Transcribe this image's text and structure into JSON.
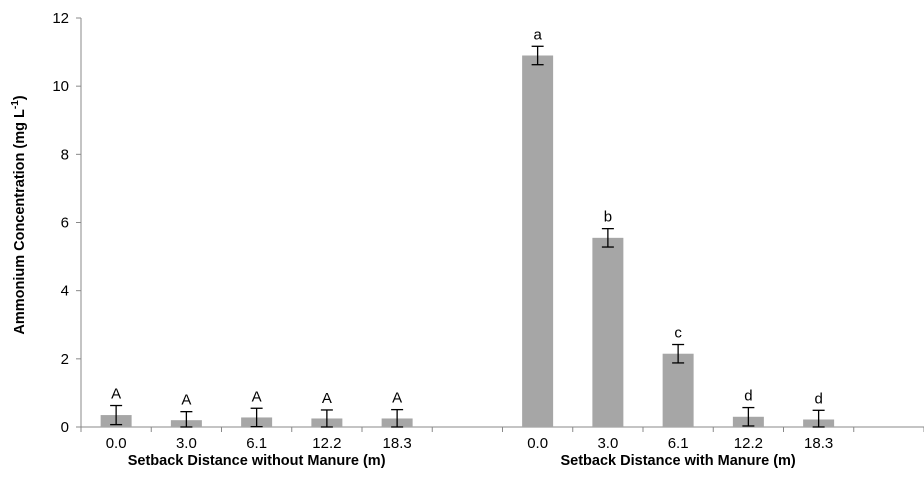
{
  "chart_data": {
    "type": "bar",
    "title": "",
    "ylabel": "Ammonium Concentration (mg L",
    "ylabel_sup": "-1",
    "ylabel_close": ")",
    "ylim": [
      0,
      12
    ],
    "yticks": [
      "0",
      "2",
      "4",
      "6",
      "8",
      "10",
      "12"
    ],
    "grid": false,
    "bar_color": "#a6a6a6",
    "groups": [
      {
        "label": "Setback Distance without Manure (m)",
        "categories": [
          "0.0",
          "3.0",
          "6.1",
          "12.2",
          "18.3"
        ],
        "values": [
          0.35,
          0.2,
          0.28,
          0.25,
          0.25
        ],
        "errors": [
          0.28,
          0.25,
          0.27,
          0.25,
          0.26
        ],
        "letters": [
          "A",
          "A",
          "A",
          "A",
          "A"
        ]
      },
      {
        "label": "Setback Distance with Manure (m)",
        "categories": [
          "0.0",
          "3.0",
          "6.1",
          "12.2",
          "18.3"
        ],
        "values": [
          10.9,
          5.55,
          2.15,
          0.3,
          0.22
        ],
        "errors": [
          0.27,
          0.27,
          0.27,
          0.27,
          0.27
        ],
        "letters": [
          "a",
          "b",
          "c",
          "d",
          "d"
        ]
      }
    ]
  }
}
